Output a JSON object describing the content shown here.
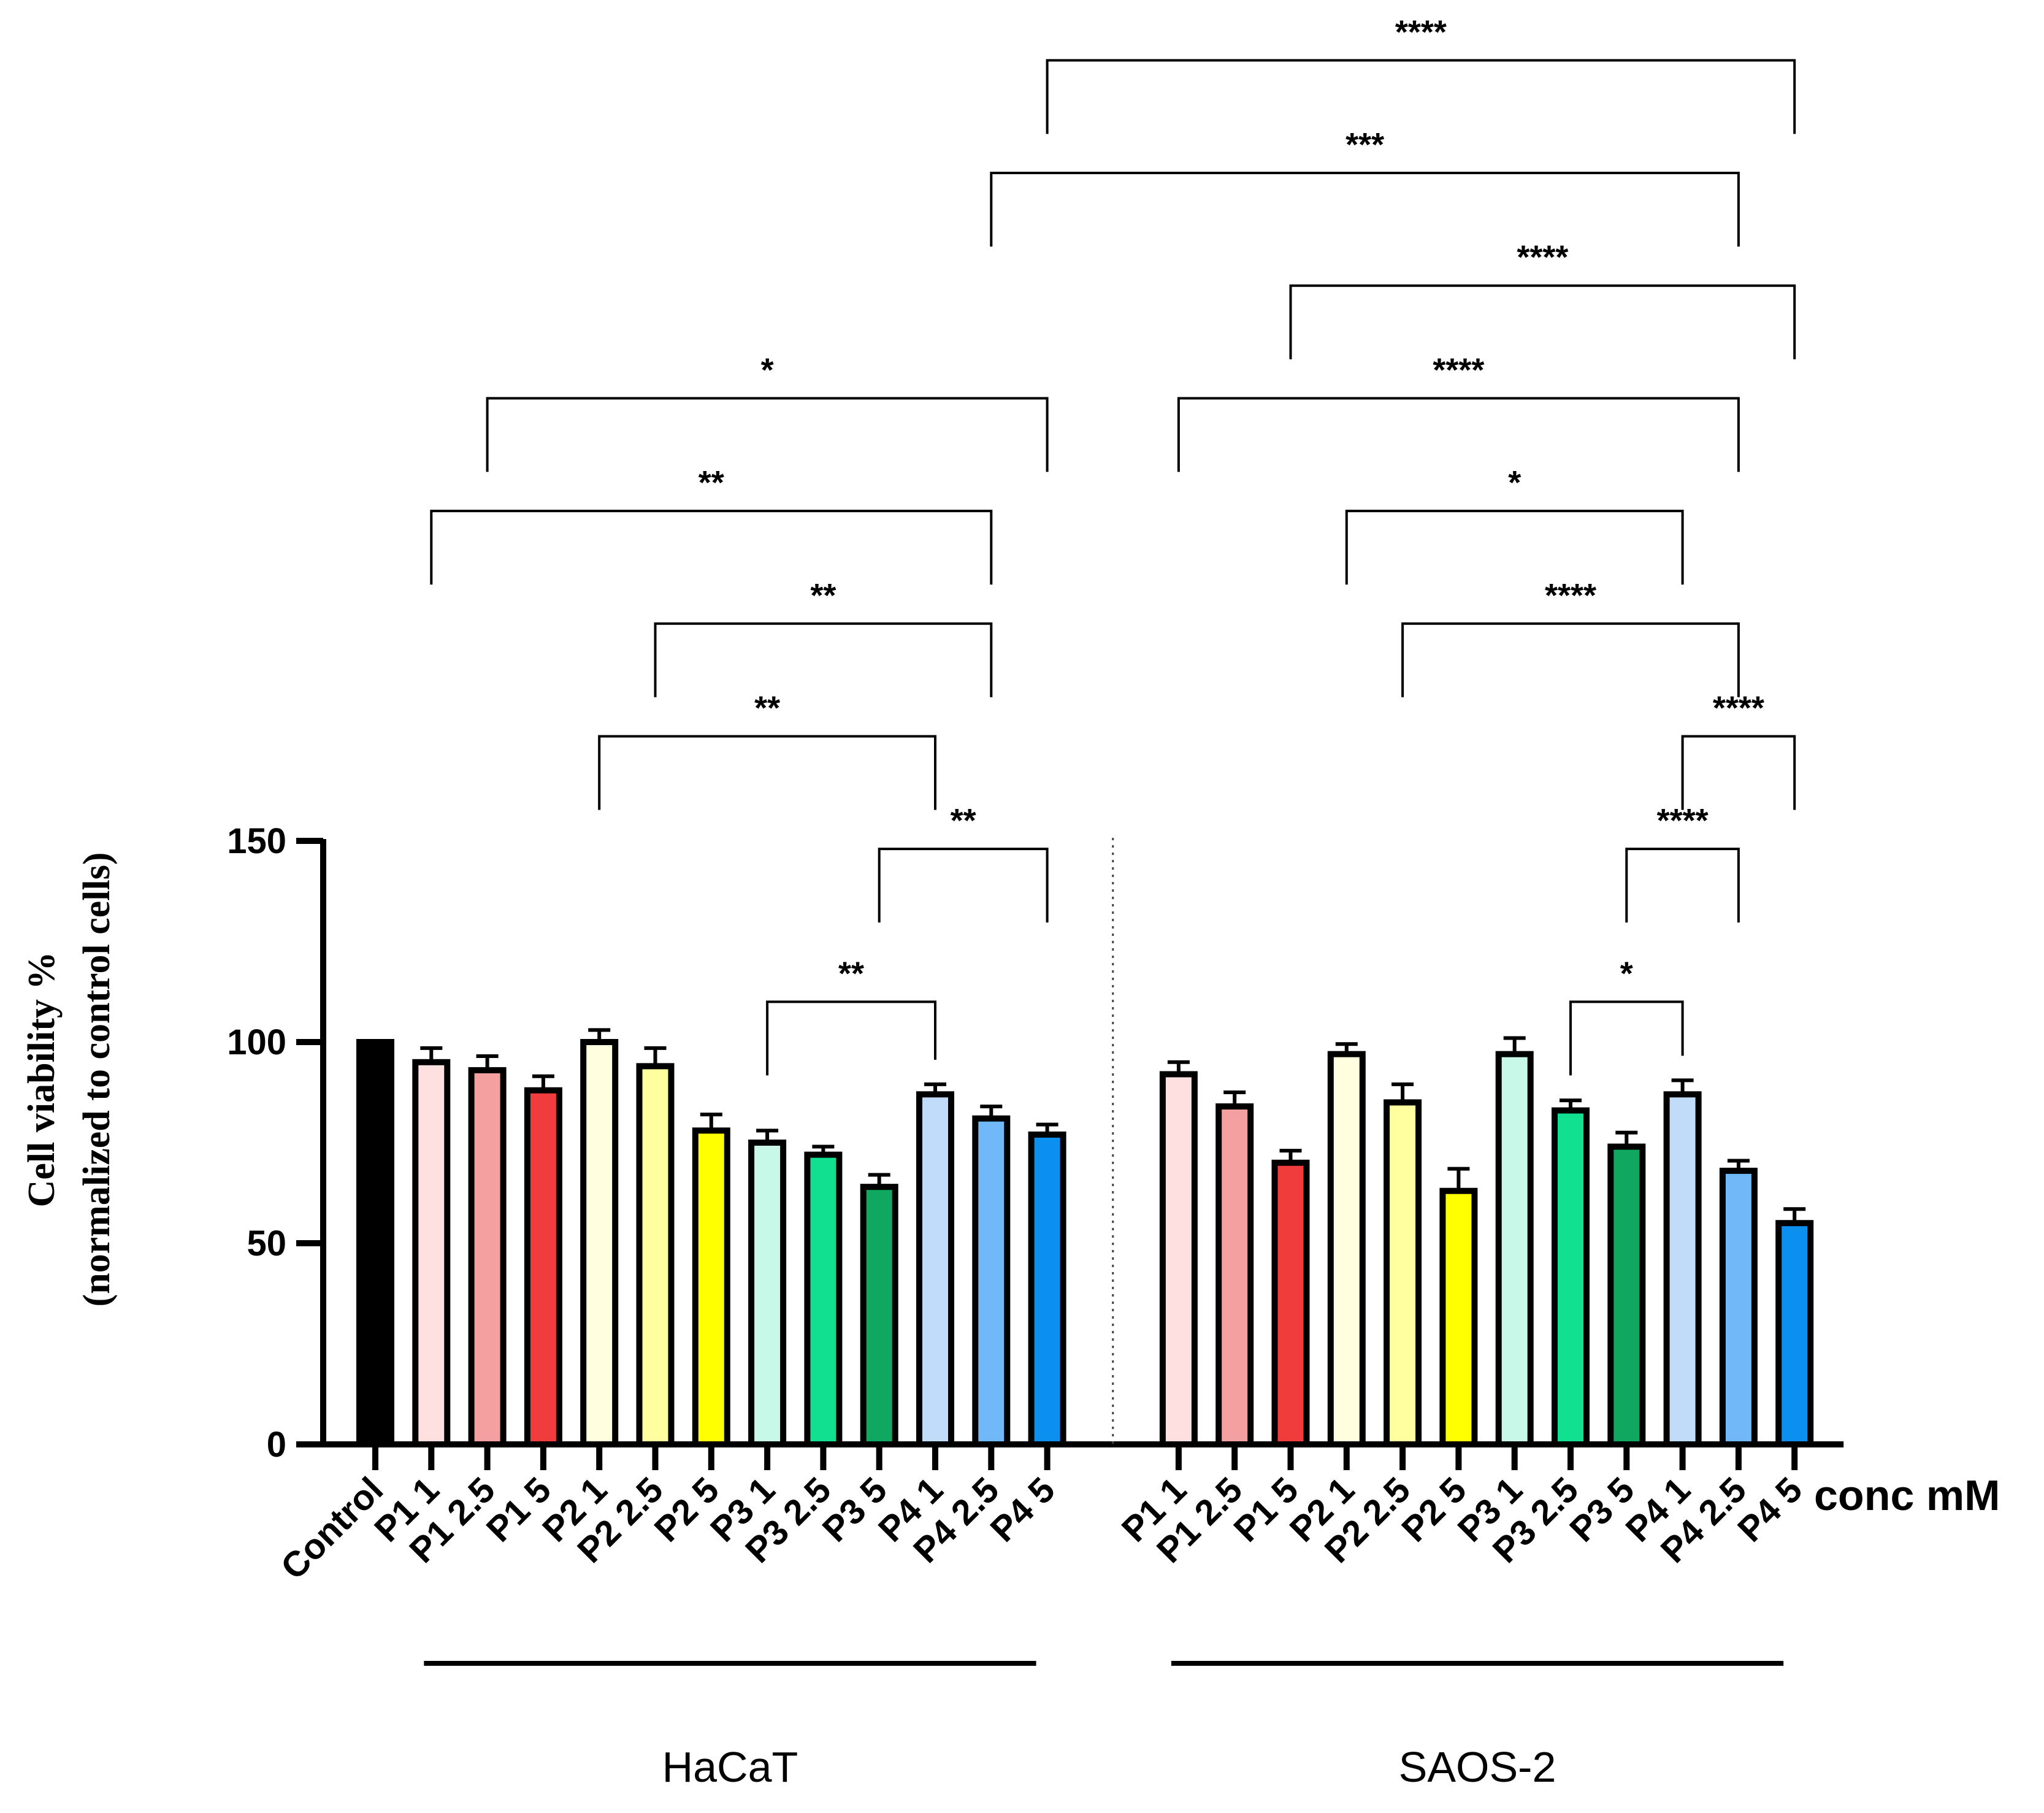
{
  "chart_data": {
    "type": "bar",
    "title": "",
    "ylabel_lines": [
      "Cell viability %",
      "(normalized to control cells)"
    ],
    "xlabel": "conc mM",
    "ylim": [
      0,
      150
    ],
    "yticks": [
      0,
      50,
      100,
      150
    ],
    "groups": [
      {
        "name": "HaCaT",
        "first_index": 1,
        "last_index": 12
      },
      {
        "name": "SAOS-2",
        "first_index": 13,
        "last_index": 24
      }
    ],
    "bars": [
      {
        "label": "Control",
        "value": 100,
        "error": 0,
        "color": "#000000"
      },
      {
        "label": "P1 1",
        "value": 95,
        "error": 3.5,
        "color": "#FFE0E0"
      },
      {
        "label": "P1 2.5",
        "value": 93,
        "error": 3.5,
        "color": "#F4A0A0"
      },
      {
        "label": "P1 5",
        "value": 88,
        "error": 3.5,
        "color": "#F03C3C"
      },
      {
        "label": "P2 1",
        "value": 100,
        "error": 3,
        "color": "#FFFFE0"
      },
      {
        "label": "P2 2.5",
        "value": 94,
        "error": 4.5,
        "color": "#FFFFA0"
      },
      {
        "label": "P2 5",
        "value": 78,
        "error": 4,
        "color": "#FFFF00"
      },
      {
        "label": "P3 1",
        "value": 75,
        "error": 3,
        "color": "#C8F8E8"
      },
      {
        "label": "P3 2.5",
        "value": 72,
        "error": 2,
        "color": "#10E090"
      },
      {
        "label": "P3 5",
        "value": 64,
        "error": 3,
        "color": "#10A860"
      },
      {
        "label": "P4 1",
        "value": 87,
        "error": 2.5,
        "color": "#C0DCF8"
      },
      {
        "label": "P4 2.5",
        "value": 81,
        "error": 3,
        "color": "#70B8F8"
      },
      {
        "label": "P4 5",
        "value": 77,
        "error": 2.5,
        "color": "#0C90F0"
      },
      {
        "label": "P1 1",
        "value": 92,
        "error": 3,
        "color": "#FFE0E0"
      },
      {
        "label": "P1 2.5",
        "value": 84,
        "error": 3.5,
        "color": "#F4A0A0"
      },
      {
        "label": "P1 5",
        "value": 70,
        "error": 3,
        "color": "#F03C3C"
      },
      {
        "label": "P2 1",
        "value": 97,
        "error": 2.5,
        "color": "#FFFFE0"
      },
      {
        "label": "P2 2.5",
        "value": 85,
        "error": 4.5,
        "color": "#FFFFA0"
      },
      {
        "label": "P2 5",
        "value": 63,
        "error": 5.5,
        "color": "#FFFF00"
      },
      {
        "label": "P3 1",
        "value": 97,
        "error": 4,
        "color": "#C8F8E8"
      },
      {
        "label": "P3 2.5",
        "value": 83,
        "error": 2.5,
        "color": "#10E090"
      },
      {
        "label": "P3 5",
        "value": 74,
        "error": 3.5,
        "color": "#10A860"
      },
      {
        "label": "P4 1",
        "value": 87,
        "error": 3.5,
        "color": "#C0DCF8"
      },
      {
        "label": "P4 2.5",
        "value": 68,
        "error": 2.5,
        "color": "#70B8F8"
      },
      {
        "label": "P4 5",
        "value": 55,
        "error": 3.5,
        "color": "#0C90F0"
      }
    ],
    "significance": [
      {
        "from": 8,
        "to": 11,
        "text": "**",
        "level": 110
      },
      {
        "from": 10,
        "to": 13,
        "text": "**",
        "level": 148
      },
      {
        "from": 5,
        "to": 11,
        "text": "**",
        "level": 176
      },
      {
        "from": 6,
        "to": 12,
        "text": "**",
        "level": 204
      },
      {
        "from": 2,
        "to": 12,
        "text": "**",
        "level": 232
      },
      {
        "from": 3,
        "to": 13,
        "text": "*",
        "level": 260
      },
      {
        "from": 12,
        "to": 24,
        "text": "***",
        "level": 316
      },
      {
        "from": 13,
        "to": 25,
        "text": "****",
        "level": 344
      },
      {
        "from": 21,
        "to": 23,
        "text": "*",
        "level": 110
      },
      {
        "from": 22,
        "to": 24,
        "text": "****",
        "level": 148
      },
      {
        "from": 23,
        "to": 25,
        "text": "****",
        "level": 176
      },
      {
        "from": 18,
        "to": 24,
        "text": "****",
        "level": 204
      },
      {
        "from": 17,
        "to": 23,
        "text": "*",
        "level": 232
      },
      {
        "from": 14,
        "to": 24,
        "text": "****",
        "level": 260
      },
      {
        "from": 16,
        "to": 25,
        "text": "****",
        "level": 288
      }
    ]
  }
}
